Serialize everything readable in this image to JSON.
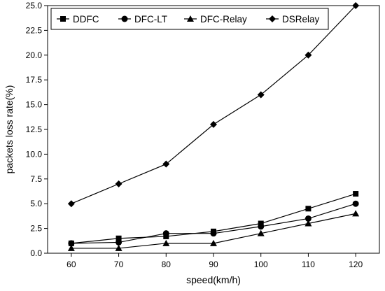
{
  "chart_data": {
    "type": "line",
    "xlabel": "speed(km/h)",
    "ylabel": "packets loss rate(%)",
    "x": [
      60,
      70,
      80,
      90,
      100,
      110,
      120
    ],
    "xlim": [
      55,
      125
    ],
    "ylim": [
      0,
      25
    ],
    "xticks": [
      "60",
      "70",
      "80",
      "90",
      "100",
      "110",
      "120"
    ],
    "yticks": [
      "0.0",
      "2.5",
      "5.0",
      "7.5",
      "10.0",
      "12.5",
      "15.0",
      "17.5",
      "20.0",
      "22.5",
      "25.0"
    ],
    "grid": false,
    "legend_position": "top",
    "series": [
      {
        "name": "DDFC",
        "marker": "square",
        "values": [
          1.0,
          1.5,
          1.7,
          2.2,
          3.0,
          4.5,
          6.0
        ]
      },
      {
        "name": "DFC-LT",
        "marker": "circle",
        "values": [
          1.0,
          1.1,
          2.0,
          2.0,
          2.7,
          3.5,
          5.0
        ]
      },
      {
        "name": "DFC-Relay",
        "marker": "triangle",
        "values": [
          0.5,
          0.5,
          1.0,
          1.0,
          2.0,
          3.0,
          4.0
        ]
      },
      {
        "name": "DSRelay",
        "marker": "diamond",
        "values": [
          5.0,
          7.0,
          9.0,
          13.0,
          16.0,
          20.0,
          25.0
        ]
      }
    ],
    "line_color": "#000000"
  }
}
